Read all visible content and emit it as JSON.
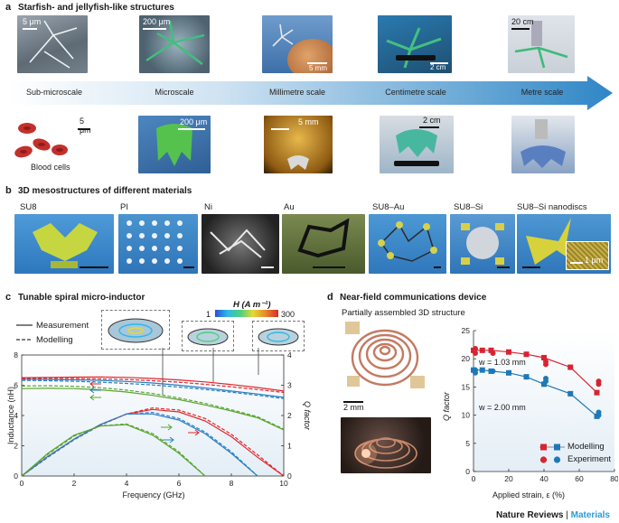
{
  "panel_a": {
    "letter": "a",
    "title": "Starfish- and jellyfish-like structures",
    "scales": [
      "Sub-microscale",
      "Microscale",
      "Millimetre scale",
      "Centimetre scale",
      "Metre scale"
    ],
    "top_scalebars": [
      "5 μm",
      "200 μm",
      "5 mm",
      "2 cm",
      "20 cm"
    ],
    "bottom_scalebars": [
      "5 μm",
      "200 μm",
      "5 mm",
      "2 cm"
    ],
    "blood_cells_label": "Blood cells"
  },
  "panel_b": {
    "letter": "b",
    "title": "3D mesostructures of different materials",
    "materials": [
      "SU8",
      "PI",
      "Ni",
      "Au",
      "SU8–Au",
      "SU8–Si",
      "SU8–Si nanodiscs"
    ],
    "inset_scalebar": "1 μm"
  },
  "panel_c": {
    "letter": "c",
    "title": "Tunable spiral micro-inductor",
    "legend": [
      "Measurement",
      "Modelling"
    ],
    "colorbar_label": "H (A m⁻¹)",
    "colorbar_min": "1",
    "colorbar_max": "300"
  },
  "panel_d": {
    "letter": "d",
    "title": "Near-field communications device",
    "subtitle": "Partially assembled 3D structure",
    "scalebar": "2 mm",
    "annotation_1": "w = 1.03 mm",
    "annotation_2": "w = 2.00 mm",
    "legend": [
      "Modelling",
      "Experiment"
    ]
  },
  "footer": {
    "journal": "Nature Reviews",
    "separator": " | ",
    "section": "Materials"
  },
  "colors": {
    "arrow_blue": "#2f86c6",
    "red": "#e3262b",
    "blue": "#2a7fc1",
    "green": "#5aa52f",
    "marker_red": "#d62530",
    "marker_blue": "#1e78b8",
    "footer_blue": "#2b9bd6"
  },
  "chart_data": [
    {
      "type": "line",
      "xlabel": "Frequency (GHz)",
      "ylabel": "Inductance (nH)",
      "y2label": "Q factor",
      "xlim": [
        0,
        10
      ],
      "ylim": [
        0,
        8
      ],
      "y2lim": [
        0,
        4
      ],
      "xticks": [
        "0",
        "2",
        "4",
        "6",
        "8",
        "10"
      ],
      "yticks": [
        "0",
        "2",
        "4",
        "6",
        "8"
      ],
      "y2ticks": [
        "0",
        "1",
        "2",
        "3",
        "4"
      ],
      "x": [
        0,
        1,
        2,
        3,
        4,
        5,
        6,
        7,
        8,
        9,
        10
      ],
      "series": [
        {
          "color": "#e3262b",
          "axis": "left",
          "style": "solid",
          "values": [
            6.5,
            6.52,
            6.54,
            6.55,
            6.52,
            6.45,
            6.35,
            6.22,
            6.05,
            5.85,
            5.62
          ]
        },
        {
          "color": "#2a7fc1",
          "axis": "left",
          "style": "solid",
          "values": [
            6.4,
            6.38,
            6.36,
            6.32,
            6.25,
            6.15,
            6.0,
            5.82,
            5.62,
            5.42,
            5.2
          ]
        },
        {
          "color": "#5aa52f",
          "axis": "left",
          "style": "solid",
          "values": [
            5.78,
            5.8,
            5.78,
            5.7,
            5.55,
            5.33,
            5.05,
            4.7,
            4.3,
            3.85,
            3.05
          ]
        },
        {
          "color": "#e3262b",
          "axis": "left",
          "style": "dashed",
          "values": [
            6.45,
            6.46,
            6.45,
            6.42,
            6.38,
            6.3,
            6.2,
            6.06,
            5.9,
            5.72,
            5.52
          ]
        },
        {
          "color": "#2a7fc1",
          "axis": "left",
          "style": "dashed",
          "values": [
            6.32,
            6.3,
            6.26,
            6.2,
            6.12,
            6.02,
            5.88,
            5.72,
            5.54,
            5.34,
            5.12
          ]
        },
        {
          "color": "#5aa52f",
          "axis": "left",
          "style": "dashed",
          "values": [
            5.95,
            5.97,
            5.93,
            5.84,
            5.68,
            5.45,
            5.16,
            4.8,
            4.38,
            3.92,
            3.1
          ]
        },
        {
          "color": "#e3262b",
          "axis": "right",
          "style": "solid",
          "values": [
            0,
            0.65,
            1.22,
            1.7,
            2.05,
            2.2,
            2.12,
            1.82,
            1.3,
            0.62,
            0
          ]
        },
        {
          "color": "#2a7fc1",
          "axis": "right",
          "style": "solid",
          "values": [
            0,
            0.65,
            1.22,
            1.7,
            2.05,
            2.05,
            1.85,
            1.4,
            0.75,
            0,
            0
          ]
        },
        {
          "color": "#5aa52f",
          "axis": "right",
          "style": "solid",
          "values": [
            0,
            0.75,
            1.35,
            1.65,
            1.7,
            1.35,
            0.75,
            0,
            0,
            0,
            0
          ]
        },
        {
          "color": "#e3262b",
          "axis": "right",
          "style": "dashed",
          "values": [
            0,
            0.62,
            1.2,
            1.68,
            2.05,
            2.25,
            2.18,
            1.9,
            1.38,
            0.7,
            0
          ]
        },
        {
          "color": "#2a7fc1",
          "axis": "right",
          "style": "dashed",
          "values": [
            0,
            0.62,
            1.2,
            1.68,
            2.05,
            2.1,
            1.9,
            1.45,
            0.8,
            0,
            0
          ]
        },
        {
          "color": "#5aa52f",
          "axis": "right",
          "style": "dashed",
          "values": [
            0,
            0.72,
            1.32,
            1.66,
            1.72,
            1.4,
            0.8,
            0,
            0,
            0,
            0
          ]
        }
      ]
    },
    {
      "type": "line",
      "xlabel": "Applied strain, ε (%)",
      "ylabel": "Q factor",
      "xlim": [
        0,
        80
      ],
      "ylim": [
        0,
        25
      ],
      "xticks": [
        "0",
        "20",
        "40",
        "60",
        "80"
      ],
      "yticks": [
        "0",
        "5",
        "10",
        "15",
        "20",
        "25"
      ],
      "series": [
        {
          "name": "Modelling",
          "color": "#d62530",
          "marker": "square",
          "x": [
            0,
            5,
            10,
            20,
            30,
            40,
            55,
            70
          ],
          "values": [
            21.5,
            21.5,
            21.5,
            21.2,
            20.8,
            20.2,
            18.5,
            14.0
          ]
        },
        {
          "name": "Modelling",
          "color": "#1e78b8",
          "marker": "square",
          "x": [
            0,
            5,
            10,
            20,
            30,
            40,
            55,
            70
          ],
          "values": [
            18.0,
            18.0,
            17.8,
            17.5,
            16.8,
            15.5,
            13.8,
            9.8
          ]
        },
        {
          "name": "Experiment",
          "color": "#d62530",
          "marker": "circle",
          "x": [
            0,
            0,
            10,
            40,
            40,
            70,
            70
          ],
          "values": [
            21.0,
            21.8,
            21.0,
            19.0,
            19.5,
            15.5,
            16.0
          ]
        },
        {
          "name": "Experiment",
          "color": "#1e78b8",
          "marker": "circle",
          "x": [
            0,
            0,
            10,
            40,
            40,
            70,
            70
          ],
          "values": [
            17.5,
            18.0,
            17.8,
            16.0,
            16.5,
            10.0,
            10.5
          ]
        }
      ]
    }
  ]
}
